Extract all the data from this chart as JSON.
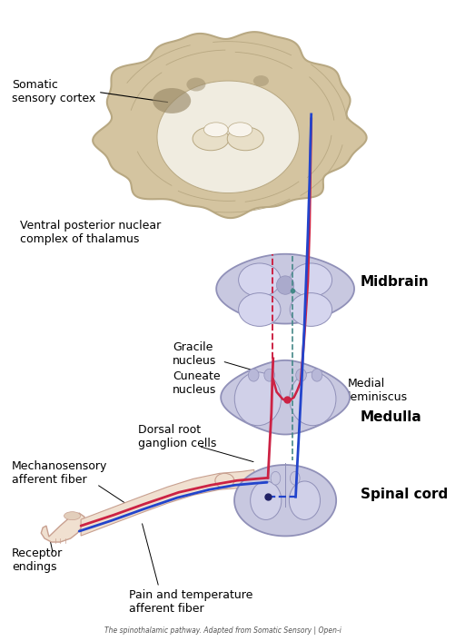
{
  "bg_color": "#ffffff",
  "title": "The spinothalamic pathway. Adapted from Somatic Sensory | Open-i",
  "labels": {
    "somatic_sensory_cortex": "Somatic\nsensory cortex",
    "ventral_posterior": "Ventral posterior nuclear\ncomplex of thalamus",
    "midbrain": "Midbrain",
    "gracile_nucleus": "Gracile\nnucleus",
    "cuneate_nucleus": "Cuneate\nnucleus",
    "medial_leminiscus": "Medial\nleminiscus",
    "medulla": "Medulla",
    "dorsal_root": "Dorsal root\nganglion cells",
    "mechanosensory": "Mechanosensory\nafferent fiber",
    "spinal_cord": "Spinal cord",
    "receptor_endings": "Receptor\nendings",
    "pain_temp": "Pain and temperature\nafferent fiber"
  },
  "colors": {
    "brain_fill": "#d4c4a0",
    "brain_edge": "#b8a882",
    "white_matter": "#f0ece0",
    "section_fill": "#c8c8e0",
    "section_edge": "#9090b8",
    "red_line": "#cc2244",
    "blue_line": "#2244cc",
    "teal_dashed": "#448888",
    "nerve_fill": "#f0e0d0",
    "nerve_edge": "#c8a090",
    "text_color": "#000000"
  },
  "font_size_label": 9,
  "font_size_section": 11
}
